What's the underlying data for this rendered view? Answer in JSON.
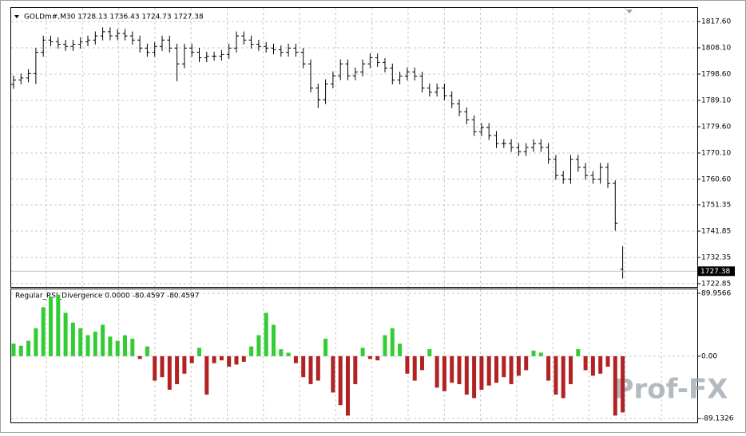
{
  "chart_data": [
    {
      "type": "ohlc",
      "title": "GOLDm#,M30  1728.13 1736.43 1724.73 1727.38",
      "open": [
        1794.9,
        1796.5,
        1797.2,
        1798.8,
        1806.5,
        1810.9,
        1810.3,
        1809.4,
        1808.6,
        1809.4,
        1810.3,
        1810.9,
        1812.4,
        1813.9,
        1812.4,
        1813.3,
        1812.4,
        1810.9,
        1808.0,
        1806.5,
        1808.6,
        1810.9,
        1808.0,
        1802.3,
        1808.0,
        1806.5,
        1804.5,
        1805.1,
        1805.1,
        1805.7,
        1808.0,
        1812.4,
        1810.9,
        1809.4,
        1808.6,
        1808.0,
        1807.4,
        1806.5,
        1808.0,
        1806.5,
        1802.3,
        1793.6,
        1789.4,
        1795.1,
        1798.0,
        1802.3,
        1798.0,
        1799.4,
        1802.3,
        1804.5,
        1802.8,
        1800.8,
        1796.5,
        1797.9,
        1799.4,
        1797.9,
        1793.6,
        1792.1,
        1793.6,
        1790.8,
        1787.9,
        1785.0,
        1782.1,
        1777.8,
        1779.3,
        1776.4,
        1773.5,
        1773.5,
        1772.1,
        1770.6,
        1772.1,
        1773.5,
        1772.1,
        1767.8,
        1762.0,
        1760.6,
        1767.8,
        1764.9,
        1762.0,
        1760.6,
        1764.9,
        1759.1,
        1728.13
      ],
      "high": [
        1798.1,
        1798.8,
        1800.4,
        1808.1,
        1812.5,
        1812.5,
        1811.9,
        1811.0,
        1811.0,
        1811.9,
        1812.5,
        1814.0,
        1815.5,
        1815.5,
        1814.9,
        1814.9,
        1814.0,
        1812.5,
        1809.6,
        1810.2,
        1812.5,
        1812.5,
        1809.6,
        1809.6,
        1809.6,
        1808.1,
        1806.7,
        1806.7,
        1807.3,
        1809.6,
        1814.0,
        1814.0,
        1812.5,
        1811.0,
        1810.2,
        1809.6,
        1809.0,
        1809.6,
        1809.6,
        1808.1,
        1803.9,
        1795.2,
        1796.7,
        1799.6,
        1803.9,
        1803.9,
        1801.0,
        1803.9,
        1806.1,
        1806.1,
        1804.4,
        1802.4,
        1799.5,
        1801.0,
        1801.0,
        1799.5,
        1795.2,
        1795.2,
        1795.2,
        1792.4,
        1789.5,
        1786.6,
        1783.7,
        1780.9,
        1780.9,
        1778.0,
        1775.1,
        1775.1,
        1773.7,
        1773.7,
        1775.1,
        1775.1,
        1773.7,
        1769.4,
        1763.6,
        1769.4,
        1769.4,
        1766.5,
        1763.6,
        1766.5,
        1766.5,
        1760.2,
        1736.43
      ],
      "low": [
        1793.3,
        1794.9,
        1795.6,
        1795.0,
        1804.9,
        1808.7,
        1807.8,
        1807.0,
        1807.0,
        1807.8,
        1808.7,
        1809.3,
        1810.8,
        1810.8,
        1810.8,
        1810.8,
        1809.3,
        1806.4,
        1804.9,
        1804.9,
        1807.0,
        1806.4,
        1796.0,
        1800.7,
        1804.9,
        1802.9,
        1802.9,
        1803.5,
        1803.5,
        1804.1,
        1806.4,
        1809.3,
        1807.8,
        1807.0,
        1806.4,
        1805.8,
        1804.9,
        1804.9,
        1804.9,
        1800.7,
        1792.0,
        1786.4,
        1787.8,
        1793.5,
        1796.4,
        1796.4,
        1796.4,
        1797.8,
        1800.7,
        1801.2,
        1799.2,
        1794.9,
        1794.9,
        1796.3,
        1796.3,
        1792.0,
        1790.5,
        1790.5,
        1789.2,
        1786.3,
        1783.4,
        1780.5,
        1776.2,
        1776.2,
        1774.8,
        1771.9,
        1771.9,
        1770.5,
        1769.0,
        1769.0,
        1770.5,
        1770.5,
        1766.2,
        1760.4,
        1759.0,
        1759.0,
        1763.3,
        1760.4,
        1759.0,
        1759.0,
        1757.5,
        1742.0,
        1724.73
      ],
      "close": [
        1796.5,
        1797.2,
        1798.8,
        1806.5,
        1810.9,
        1810.3,
        1809.4,
        1808.6,
        1809.4,
        1810.3,
        1810.9,
        1812.4,
        1813.9,
        1812.4,
        1813.3,
        1812.4,
        1810.9,
        1808.0,
        1806.5,
        1808.6,
        1810.9,
        1808.0,
        1802.3,
        1808.0,
        1806.5,
        1804.5,
        1805.1,
        1805.1,
        1805.7,
        1808.0,
        1812.4,
        1810.9,
        1809.4,
        1808.6,
        1808.0,
        1807.4,
        1806.5,
        1808.0,
        1806.5,
        1802.3,
        1793.6,
        1789.4,
        1795.1,
        1798.0,
        1802.3,
        1798.0,
        1799.4,
        1802.3,
        1804.5,
        1802.8,
        1800.8,
        1796.5,
        1797.9,
        1799.4,
        1797.9,
        1793.6,
        1792.1,
        1793.6,
        1790.8,
        1787.9,
        1785.0,
        1782.1,
        1777.8,
        1779.3,
        1776.4,
        1773.5,
        1773.5,
        1772.1,
        1770.6,
        1772.1,
        1773.5,
        1772.1,
        1767.8,
        1762.0,
        1760.6,
        1767.8,
        1764.9,
        1762.0,
        1760.6,
        1764.9,
        1759.1,
        1744.7,
        1727.38
      ],
      "color": "#000000",
      "last_price": 1727.38,
      "ylim": [
        1721.7,
        1822.5
      ],
      "yticks": [
        {
          "value": 1817.6,
          "label": "1817.60"
        },
        {
          "value": 1808.1,
          "label": "1808.10"
        },
        {
          "value": 1798.6,
          "label": "1798.60"
        },
        {
          "value": 1789.1,
          "label": "1789.10"
        },
        {
          "value": 1779.6,
          "label": "1779.60"
        },
        {
          "value": 1770.1,
          "label": "1770.10"
        },
        {
          "value": 1760.6,
          "label": "1760.60"
        },
        1751.35,
        1741.85,
        1732.35,
        1722.85
      ],
      "grid": true
    },
    {
      "type": "histogram",
      "title": "Regular_RSI_Divergence 0.0000 -80.4597 -80.4597",
      "values": [
        18,
        15,
        22,
        40,
        70,
        85,
        88,
        62,
        48,
        40,
        30,
        35,
        45,
        28,
        22,
        30,
        25,
        -4,
        14,
        -35,
        -30,
        -48,
        -40,
        -25,
        -10,
        12,
        -55,
        -10,
        -6,
        -15,
        -12,
        -8,
        14,
        30,
        62,
        45,
        10,
        5,
        -10,
        -30,
        -40,
        -35,
        25,
        -52,
        -70,
        -85,
        -40,
        12,
        -4,
        -6,
        30,
        40,
        18,
        -25,
        -35,
        -20,
        10,
        -45,
        -50,
        -38,
        -40,
        -55,
        -60,
        -48,
        -42,
        -38,
        -30,
        -40,
        -28,
        -20,
        8,
        5,
        -35,
        -55,
        -60,
        -40,
        10,
        -20,
        -28,
        -25,
        -15,
        -85,
        -80.4597
      ],
      "up_color": "#32cd32",
      "down_color": "#b22222",
      "ylim": [
        -94.8,
        95.6
      ],
      "yticks": [
        89.9566,
        {
          "value": 0,
          "label": "0.00"
        },
        -89.1326
      ],
      "grid": true
    }
  ],
  "watermark": "Prof-FX"
}
